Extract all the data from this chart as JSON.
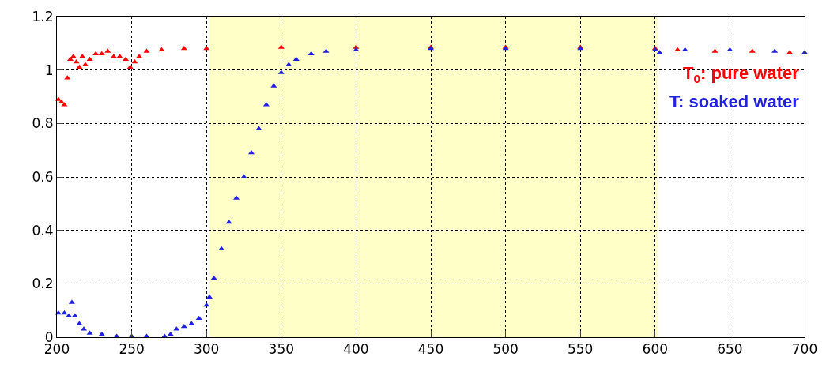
{
  "chart_data": {
    "type": "scatter",
    "marker": "triangle",
    "grid": true,
    "legend": false,
    "xlim": [
      200,
      700
    ],
    "xticks": [
      200,
      250,
      300,
      350,
      400,
      450,
      500,
      550,
      600,
      650,
      700
    ],
    "ylim": [
      0,
      1.2
    ],
    "yticks": [
      0,
      0.2,
      0.4,
      0.6,
      0.8,
      1,
      1.2
    ],
    "bands": [
      {
        "axis": "x",
        "from": 302,
        "to": 602,
        "color": "#ffffc8"
      }
    ],
    "series": [
      {
        "name": "T$_{0}$: pure water",
        "color": "#ff0000",
        "x": [
          201,
          203,
          205,
          207,
          209,
          211,
          213,
          215,
          217,
          219,
          222,
          226,
          230,
          234,
          238,
          242,
          246,
          249,
          252,
          255,
          260,
          270,
          285,
          300,
          350,
          400,
          450,
          500,
          550,
          600,
          615,
          640,
          665,
          690
        ],
        "values": [
          0.89,
          0.88,
          0.87,
          0.97,
          1.04,
          1.05,
          1.03,
          1.01,
          1.05,
          1.02,
          1.04,
          1.06,
          1.06,
          1.07,
          1.05,
          1.05,
          1.04,
          1.01,
          1.03,
          1.05,
          1.07,
          1.075,
          1.08,
          1.08,
          1.085,
          1.085,
          1.085,
          1.085,
          1.085,
          1.08,
          1.075,
          1.07,
          1.07,
          1.065
        ]
      },
      {
        "name": "T: soaked water",
        "color": "#2020e0",
        "x": [
          201,
          205,
          208,
          210,
          212,
          215,
          218,
          222,
          230,
          240,
          250,
          260,
          272,
          276,
          280,
          285,
          290,
          295,
          300,
          302,
          305,
          310,
          315,
          320,
          325,
          330,
          335,
          340,
          345,
          350,
          355,
          360,
          370,
          380,
          400,
          450,
          500,
          550,
          600,
          603,
          620,
          650,
          680,
          700
        ],
        "values": [
          0.09,
          0.09,
          0.08,
          0.13,
          0.08,
          0.05,
          0.03,
          0.015,
          0.01,
          0.003,
          0.003,
          0.003,
          0.003,
          0.01,
          0.03,
          0.04,
          0.05,
          0.07,
          0.12,
          0.15,
          0.22,
          0.33,
          0.43,
          0.52,
          0.6,
          0.69,
          0.78,
          0.87,
          0.94,
          0.99,
          1.02,
          1.04,
          1.06,
          1.07,
          1.075,
          1.08,
          1.08,
          1.08,
          1.075,
          1.065,
          1.075,
          1.075,
          1.07,
          1.065
        ]
      }
    ]
  }
}
